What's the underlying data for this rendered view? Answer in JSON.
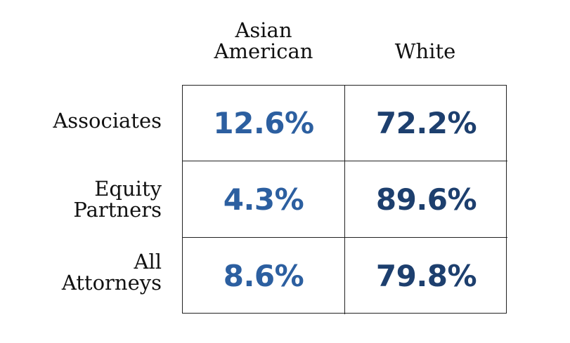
{
  "chart_data": {
    "type": "table",
    "columns": [
      "Asian\nAmerican",
      "White"
    ],
    "rows": [
      "Associates",
      "Equity\nPartners",
      "All\nAttorneys"
    ],
    "values": [
      [
        "12.6%",
        "72.2%"
      ],
      [
        "4.3%",
        "89.6%"
      ],
      [
        "8.6%",
        "79.8%"
      ]
    ],
    "column_colors": [
      "#2c5fa0",
      "#1d3f6e"
    ],
    "grid": true
  }
}
